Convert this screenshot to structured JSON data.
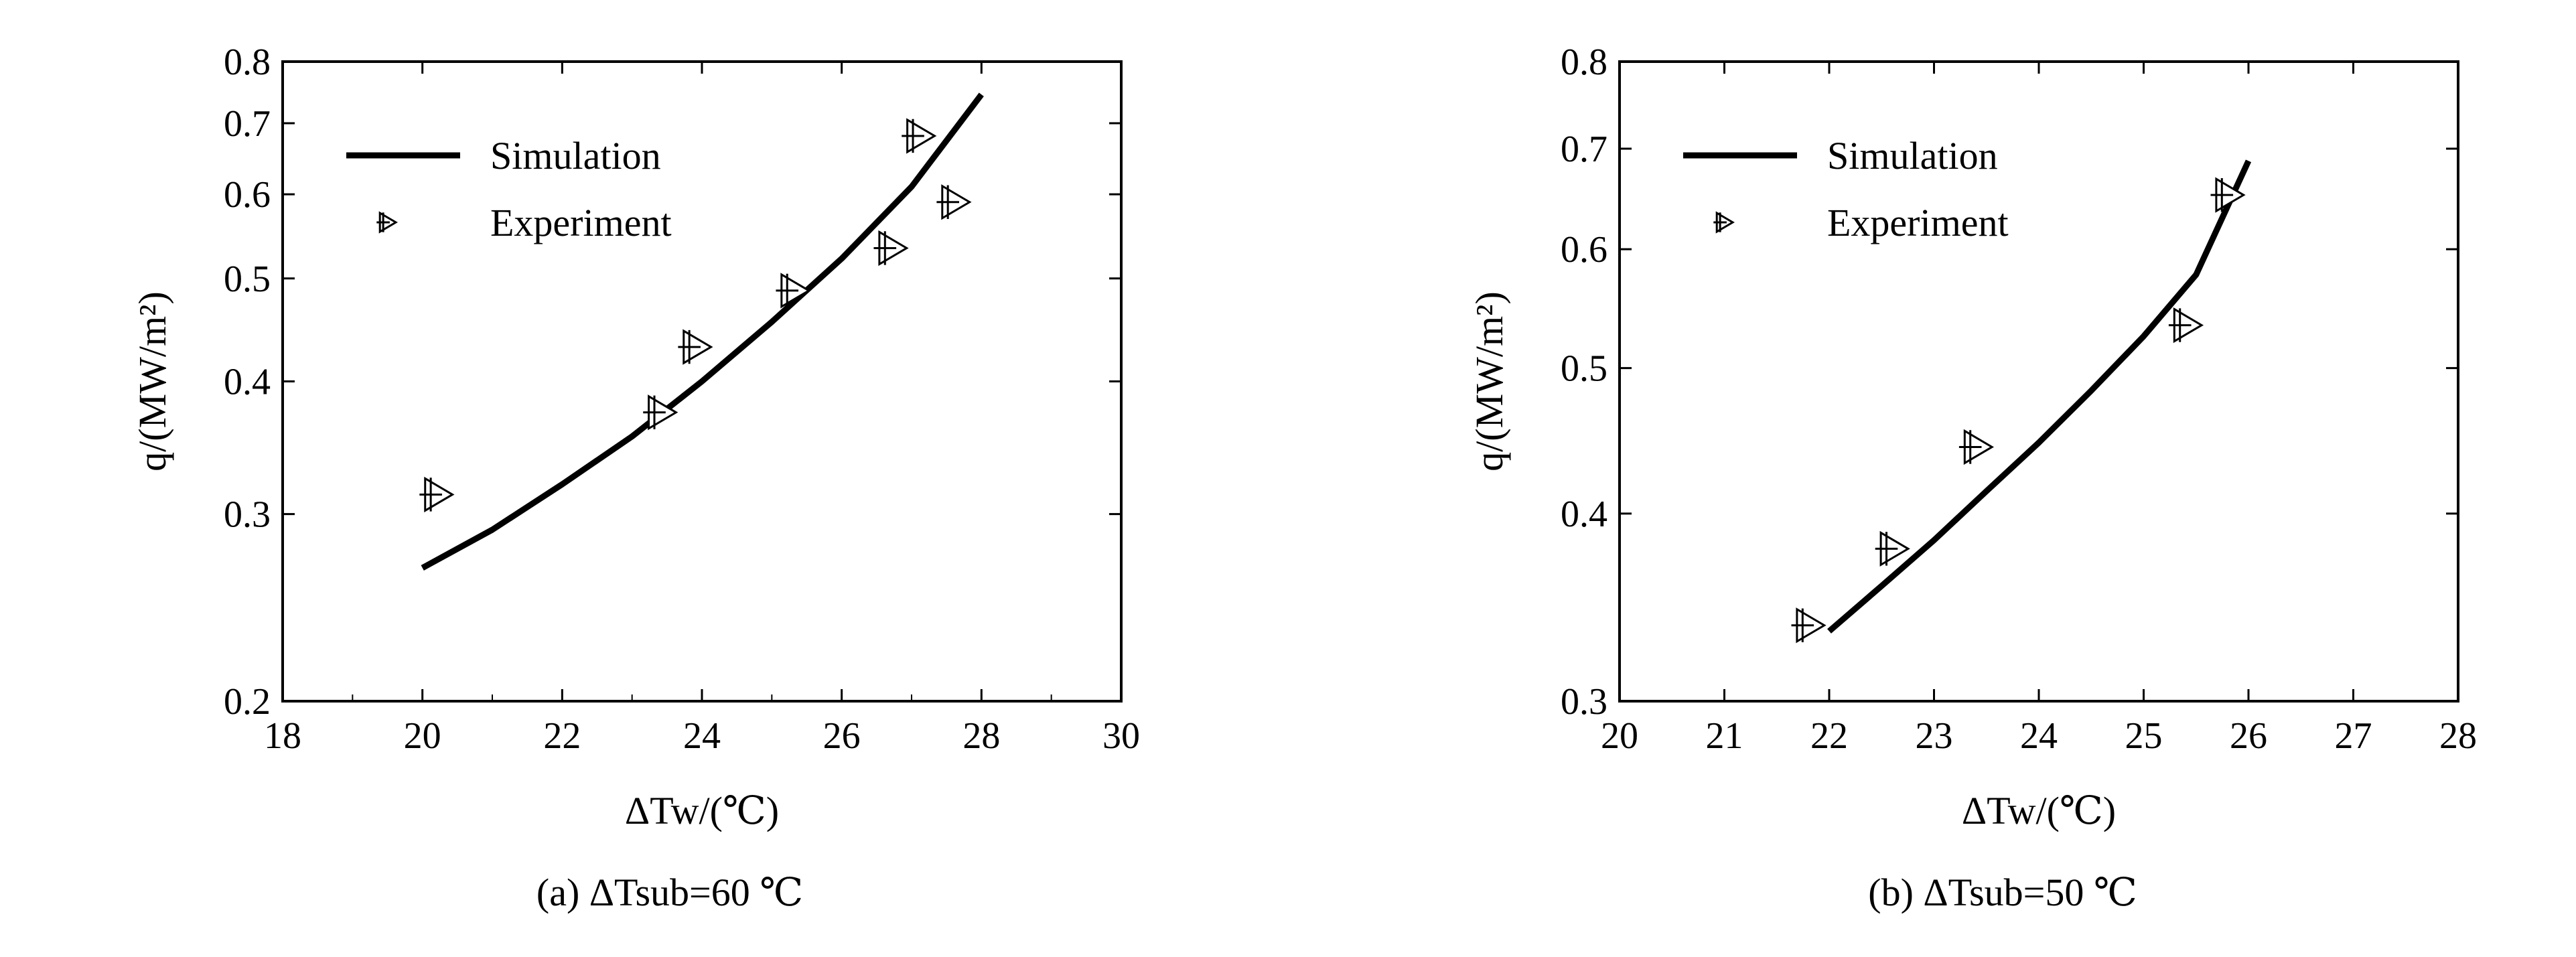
{
  "chart_data": [
    {
      "type": "line",
      "scale": {
        "x": "linear",
        "y": "log"
      },
      "xlabel": "ΔTw/(℃)",
      "ylabel": "q/(MW/m²)",
      "caption": "(a) ΔTsub=60 ℃",
      "xlim": [
        18,
        30
      ],
      "ylim": [
        0.2,
        0.8
      ],
      "xticks": [
        18,
        20,
        22,
        24,
        26,
        28,
        30
      ],
      "yticks": [
        0.2,
        0.3,
        0.4,
        0.5,
        0.6,
        0.7,
        0.8
      ],
      "legend": {
        "position": "top-left",
        "entries": [
          "Simulation",
          "Experiment"
        ]
      },
      "series": [
        {
          "name": "Simulation",
          "style": "solid-line",
          "points": [
            [
              20,
              0.267
            ],
            [
              21,
              0.29
            ],
            [
              22,
              0.32
            ],
            [
              23,
              0.355
            ],
            [
              24,
              0.4
            ],
            [
              25,
              0.455
            ],
            [
              26,
              0.522
            ],
            [
              27,
              0.61
            ],
            [
              28,
              0.745
            ]
          ]
        },
        {
          "name": "Experiment",
          "style": "marker",
          "marker": "crossed-triangle",
          "points": [
            [
              20.2,
              0.313
            ],
            [
              23.4,
              0.374
            ],
            [
              23.9,
              0.431
            ],
            [
              25.3,
              0.487
            ],
            [
              26.7,
              0.534
            ],
            [
              27.1,
              0.681
            ],
            [
              27.6,
              0.59
            ]
          ]
        }
      ],
      "grid": false
    },
    {
      "type": "line",
      "scale": {
        "x": "linear",
        "y": "log"
      },
      "xlabel": "ΔTw/(℃)",
      "ylabel": "q/(MW/m²)",
      "caption": "(b) ΔTsub=50 ℃",
      "xlim": [
        20,
        28
      ],
      "ylim": [
        0.3,
        0.8
      ],
      "xticks": [
        20,
        21,
        22,
        23,
        24,
        25,
        26,
        27,
        28
      ],
      "yticks": [
        0.3,
        0.4,
        0.5,
        0.6,
        0.7,
        0.8
      ],
      "legend": {
        "position": "top-left",
        "entries": [
          "Simulation",
          "Experiment"
        ]
      },
      "series": [
        {
          "name": "Simulation",
          "style": "solid-line",
          "points": [
            [
              22,
              0.334
            ],
            [
              22.5,
              0.358
            ],
            [
              23,
              0.384
            ],
            [
              23.5,
              0.414
            ],
            [
              24,
              0.446
            ],
            [
              24.5,
              0.483
            ],
            [
              25,
              0.525
            ],
            [
              25.5,
              0.577
            ],
            [
              26,
              0.687
            ]
          ]
        },
        {
          "name": "Experiment",
          "style": "marker",
          "marker": "crossed-triangle",
          "points": [
            [
              21.8,
              0.337
            ],
            [
              22.6,
              0.379
            ],
            [
              23.4,
              0.443
            ],
            [
              25.4,
              0.534
            ],
            [
              25.8,
              0.652
            ]
          ]
        }
      ],
      "grid": false
    }
  ]
}
